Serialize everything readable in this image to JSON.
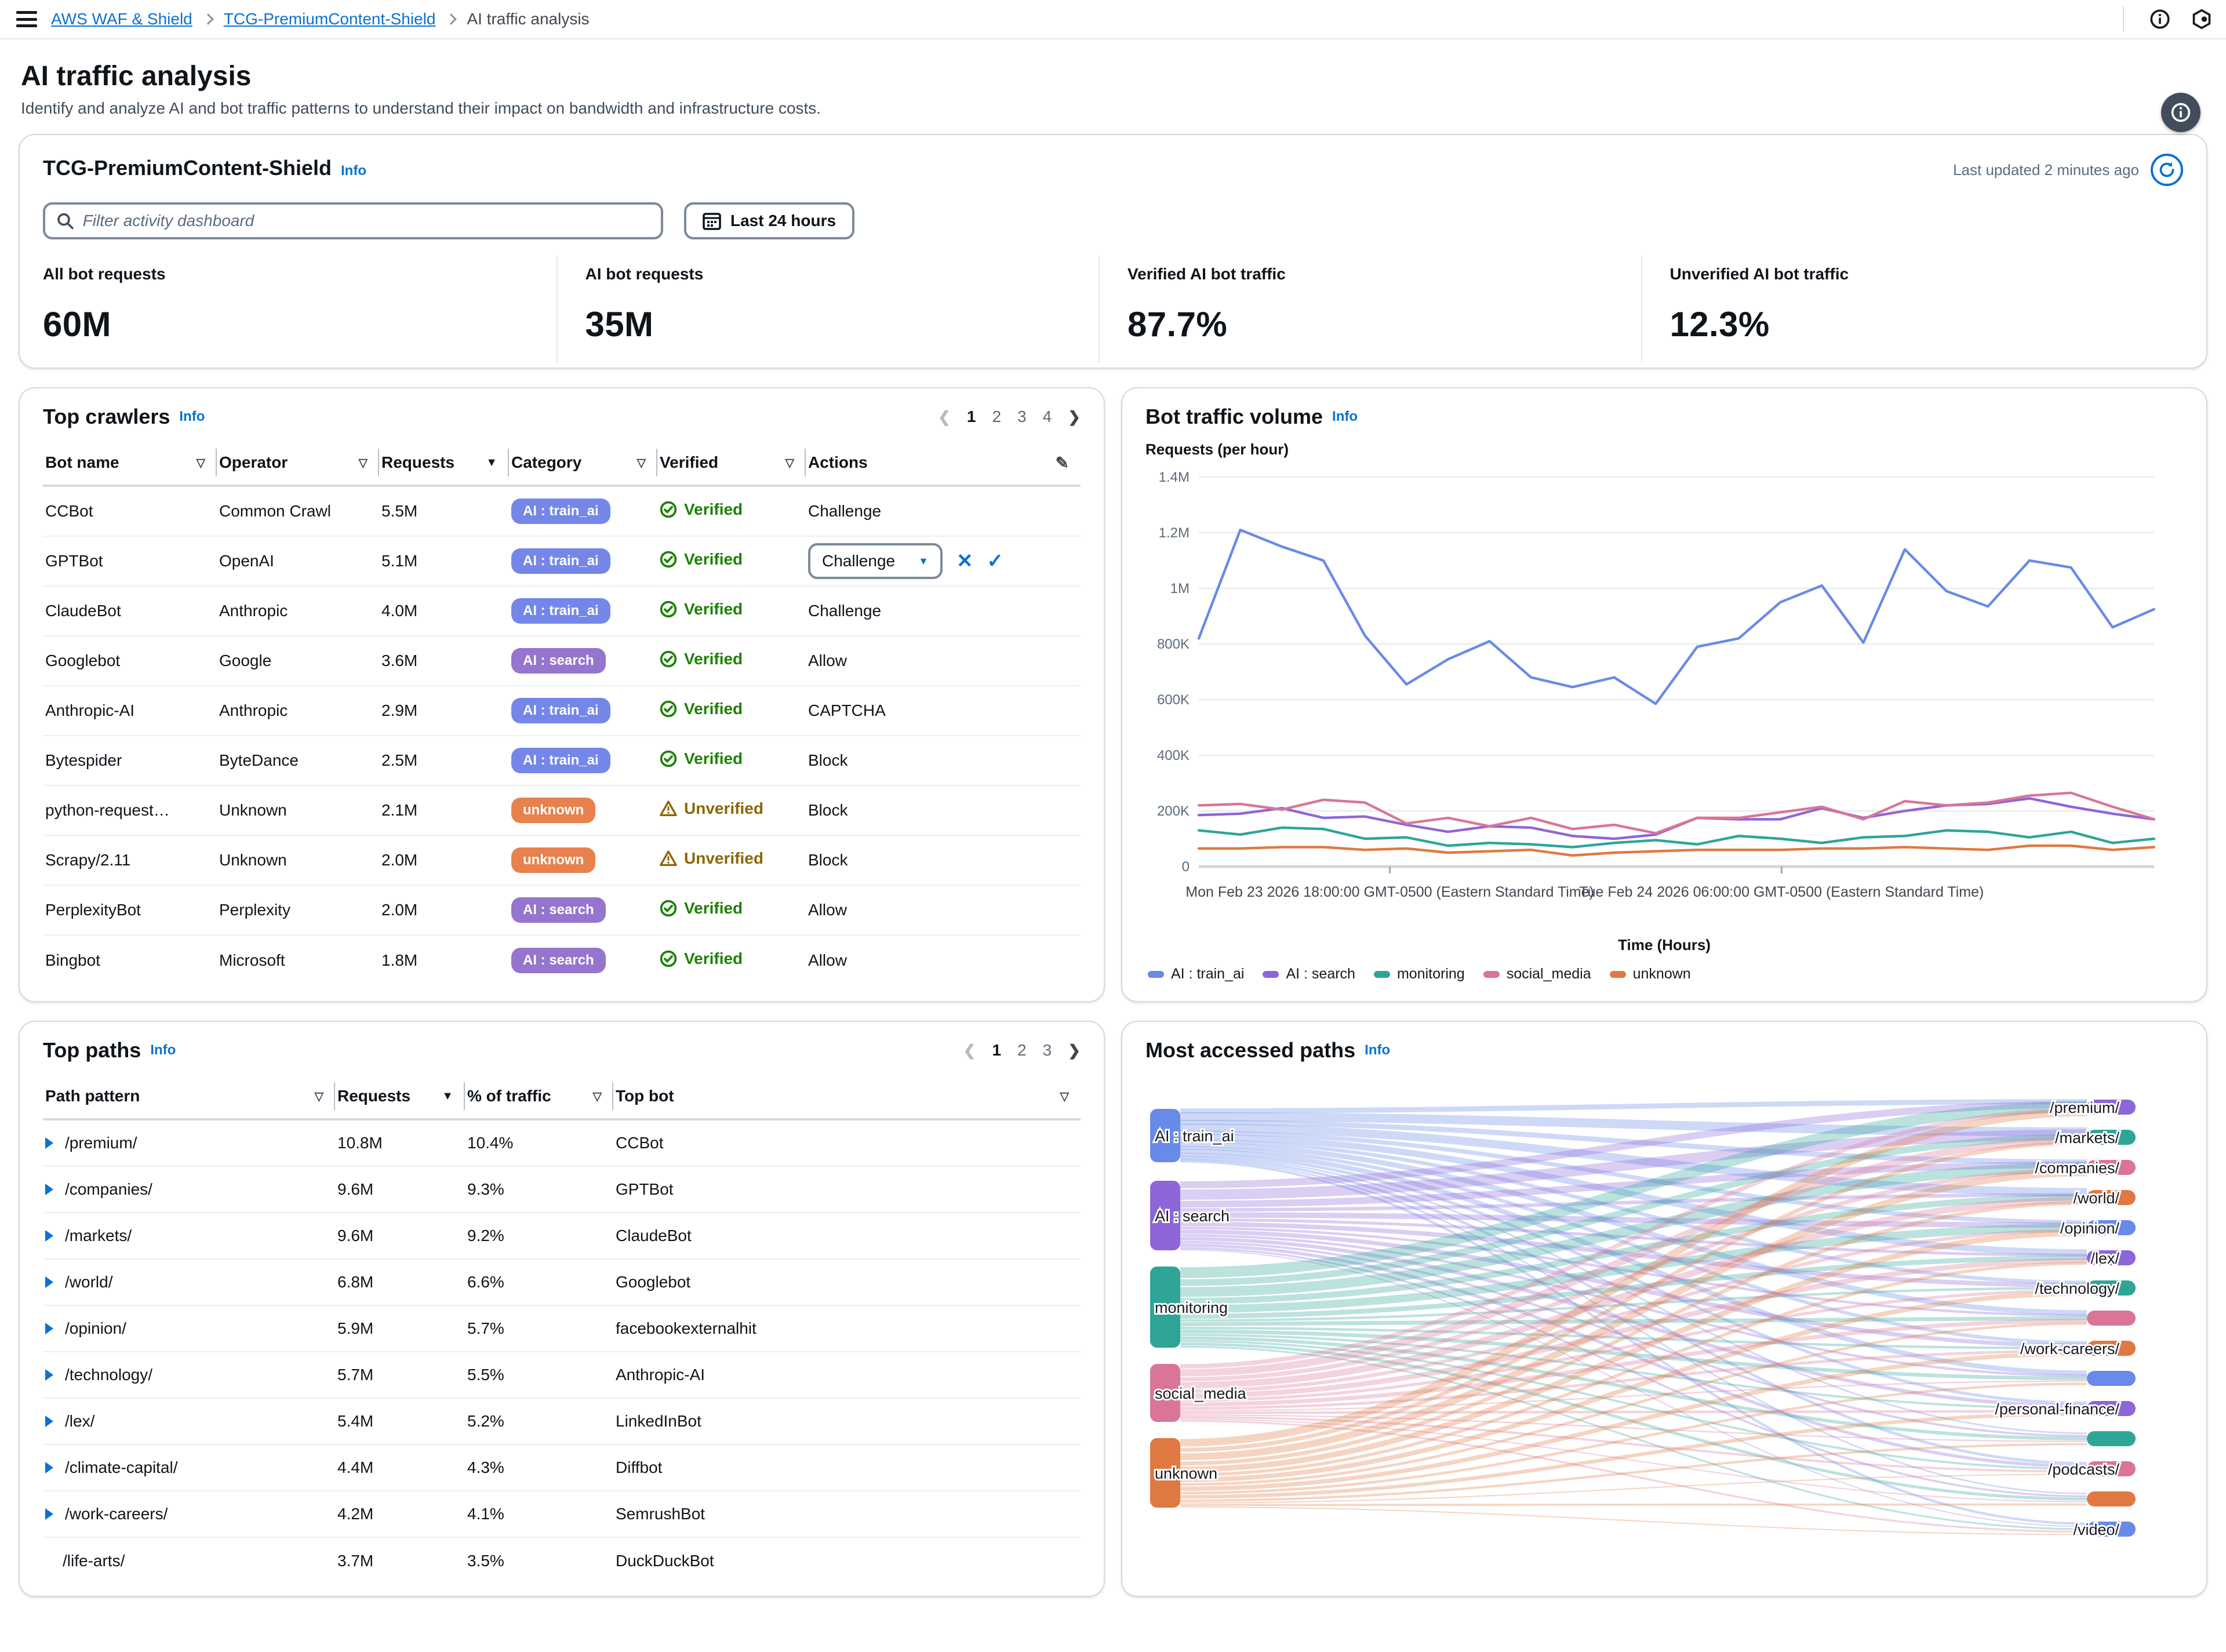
{
  "topbar": {
    "breadcrumb": [
      "AWS WAF & Shield",
      "TCG-PremiumContent-Shield",
      "AI traffic analysis"
    ]
  },
  "page": {
    "title": "AI traffic analysis",
    "subtitle": "Identify and analyze AI and bot traffic patterns to understand their impact on bandwidth and infrastructure costs."
  },
  "summary": {
    "title": "TCG-PremiumContent-Shield",
    "info_label": "Info",
    "last_updated": "Last updated 2 minutes ago",
    "filter_placeholder": "Filter activity dashboard",
    "date_range": "Last 24 hours",
    "metrics": [
      {
        "label": "All bot requests",
        "value": "60M"
      },
      {
        "label": "AI bot requests",
        "value": "35M"
      },
      {
        "label": "Verified AI bot traffic",
        "value": "87.7%"
      },
      {
        "label": "Unverified AI bot traffic",
        "value": "12.3%"
      }
    ]
  },
  "top_crawlers": {
    "title": "Top crawlers",
    "info_label": "Info",
    "pagination": {
      "pages": [
        "1",
        "2",
        "3",
        "4"
      ],
      "current": "1"
    },
    "columns": [
      "Bot name",
      "Operator",
      "Requests",
      "Category",
      "Verified",
      "Actions"
    ],
    "sorted_column": "Requests",
    "category_colors": {
      "AI : train_ai": "#7487E8",
      "AI : search": "#9575CD",
      "unknown": "#E8814D"
    },
    "rows": [
      {
        "bot": "CCBot",
        "operator": "Common Crawl",
        "requests": "5.5M",
        "category": "AI : train_ai",
        "verified": "Verified",
        "action": "Challenge",
        "editing": false
      },
      {
        "bot": "GPTBot",
        "operator": "OpenAI",
        "requests": "5.1M",
        "category": "AI : train_ai",
        "verified": "Verified",
        "action": "Challenge",
        "editing": true
      },
      {
        "bot": "ClaudeBot",
        "operator": "Anthropic",
        "requests": "4.0M",
        "category": "AI : train_ai",
        "verified": "Verified",
        "action": "Challenge",
        "editing": false
      },
      {
        "bot": "Googlebot",
        "operator": "Google",
        "requests": "3.6M",
        "category": "AI : search",
        "verified": "Verified",
        "action": "Allow",
        "editing": false
      },
      {
        "bot": "Anthropic-AI",
        "operator": "Anthropic",
        "requests": "2.9M",
        "category": "AI : train_ai",
        "verified": "Verified",
        "action": "CAPTCHA",
        "editing": false
      },
      {
        "bot": "Bytespider",
        "operator": "ByteDance",
        "requests": "2.5M",
        "category": "AI : train_ai",
        "verified": "Verified",
        "action": "Block",
        "editing": false
      },
      {
        "bot": "python-request…",
        "operator": "Unknown",
        "requests": "2.1M",
        "category": "unknown",
        "verified": "Unverified",
        "action": "Block",
        "editing": false
      },
      {
        "bot": "Scrapy/2.11",
        "operator": "Unknown",
        "requests": "2.0M",
        "category": "unknown",
        "verified": "Unverified",
        "action": "Block",
        "editing": false
      },
      {
        "bot": "PerplexityBot",
        "operator": "Perplexity",
        "requests": "2.0M",
        "category": "AI : search",
        "verified": "Verified",
        "action": "Allow",
        "editing": false
      },
      {
        "bot": "Bingbot",
        "operator": "Microsoft",
        "requests": "1.8M",
        "category": "AI : search",
        "verified": "Verified",
        "action": "Allow",
        "editing": false
      }
    ]
  },
  "bot_traffic_card": {
    "title": "Bot traffic volume",
    "info_label": "Info"
  },
  "top_paths": {
    "title": "Top paths",
    "info_label": "Info",
    "pagination": {
      "pages": [
        "1",
        "2",
        "3"
      ],
      "current": "1"
    },
    "columns": [
      "Path pattern",
      "Requests",
      "% of traffic",
      "Top bot"
    ],
    "sorted_column": "Requests",
    "rows": [
      {
        "path": "/premium/",
        "requests": "10.8M",
        "pct": "10.4%",
        "bot": "CCBot",
        "expandable": true
      },
      {
        "path": "/companies/",
        "requests": "9.6M",
        "pct": "9.3%",
        "bot": "GPTBot",
        "expandable": true
      },
      {
        "path": "/markets/",
        "requests": "9.6M",
        "pct": "9.2%",
        "bot": "ClaudeBot",
        "expandable": true
      },
      {
        "path": "/world/",
        "requests": "6.8M",
        "pct": "6.6%",
        "bot": "Googlebot",
        "expandable": true
      },
      {
        "path": "/opinion/",
        "requests": "5.9M",
        "pct": "5.7%",
        "bot": "facebookexternalhit",
        "expandable": true
      },
      {
        "path": "/technology/",
        "requests": "5.7M",
        "pct": "5.5%",
        "bot": "Anthropic-AI",
        "expandable": true
      },
      {
        "path": "/lex/",
        "requests": "5.4M",
        "pct": "5.2%",
        "bot": "LinkedInBot",
        "expandable": true
      },
      {
        "path": "/climate-capital/",
        "requests": "4.4M",
        "pct": "4.3%",
        "bot": "Diffbot",
        "expandable": true
      },
      {
        "path": "/work-careers/",
        "requests": "4.2M",
        "pct": "4.1%",
        "bot": "SemrushBot",
        "expandable": true
      },
      {
        "path": "/life-arts/",
        "requests": "3.7M",
        "pct": "3.5%",
        "bot": "DuckDuckBot",
        "expandable": false
      }
    ]
  },
  "most_accessed_card": {
    "title": "Most accessed paths",
    "info_label": "Info"
  },
  "chart_data": [
    {
      "id": "bot_traffic_volume",
      "type": "line",
      "title": "Bot traffic volume",
      "ylabel": "Requests (per hour)",
      "xlabel": "Time (Hours)",
      "ylim": [
        0,
        1400000
      ],
      "grid": true,
      "legend_position": "bottom",
      "ytick_labels": [
        "0",
        "200K",
        "400K",
        "600K",
        "800K",
        "1M",
        "1.2M",
        "1.4M"
      ],
      "xticks": [
        {
          "pos": 0.2,
          "label": "Mon Feb 23 2026 18:00:00 GMT-0500 (Eastern Standard Time)"
        },
        {
          "pos": 0.61,
          "label": "Tue Feb 24 2026 06:00:00 GMT-0500 (Eastern Standard Time)"
        }
      ],
      "series": [
        {
          "name": "AI : train_ai",
          "color": "#688AE8",
          "values": [
            820000,
            1210000,
            1150000,
            1100000,
            830000,
            655000,
            745000,
            810000,
            680000,
            645000,
            680000,
            585000,
            790000,
            820000,
            950000,
            1010000,
            805000,
            1140000,
            990000,
            935000,
            1100000,
            1075000,
            860000,
            925000
          ]
        },
        {
          "name": "AI : search",
          "color": "#8D66D9",
          "values": [
            185000,
            190000,
            210000,
            175000,
            180000,
            150000,
            125000,
            145000,
            140000,
            110000,
            100000,
            115000,
            175000,
            170000,
            170000,
            210000,
            175000,
            200000,
            220000,
            225000,
            245000,
            215000,
            190000,
            170000
          ]
        },
        {
          "name": "monitoring",
          "color": "#2EA597",
          "values": [
            130000,
            115000,
            140000,
            135000,
            100000,
            105000,
            75000,
            85000,
            80000,
            70000,
            85000,
            95000,
            80000,
            110000,
            100000,
            85000,
            105000,
            110000,
            130000,
            125000,
            105000,
            125000,
            85000,
            100000
          ]
        },
        {
          "name": "social_media",
          "color": "#DA7596",
          "values": [
            220000,
            225000,
            205000,
            240000,
            230000,
            155000,
            175000,
            145000,
            175000,
            135000,
            150000,
            120000,
            175000,
            175000,
            195000,
            215000,
            170000,
            235000,
            220000,
            230000,
            255000,
            265000,
            215000,
            170000
          ]
        },
        {
          "name": "unknown",
          "color": "#E07941",
          "values": [
            65000,
            65000,
            70000,
            70000,
            60000,
            65000,
            50000,
            55000,
            60000,
            40000,
            50000,
            55000,
            60000,
            60000,
            60000,
            65000,
            65000,
            70000,
            65000,
            60000,
            75000,
            75000,
            60000,
            70000
          ]
        }
      ]
    },
    {
      "id": "most_accessed_paths",
      "type": "sankey",
      "title": "Most accessed paths",
      "sources": [
        {
          "name": "AI : train_ai",
          "color": "#688AE8"
        },
        {
          "name": "AI : search",
          "color": "#8D66D9"
        },
        {
          "name": "monitoring",
          "color": "#2EA597"
        },
        {
          "name": "social_media",
          "color": "#DA7596"
        },
        {
          "name": "unknown",
          "color": "#E07941"
        }
      ],
      "targets": [
        {
          "name": "/premium/",
          "color": "#8D66D9"
        },
        {
          "name": "/markets/",
          "color": "#2EA597"
        },
        {
          "name": "/companies/",
          "color": "#DA7596"
        },
        {
          "name": "/world/",
          "color": "#E07941"
        },
        {
          "name": "/opinion/",
          "color": "#688AE8"
        },
        {
          "name": "/lex/",
          "color": "#8D66D9"
        },
        {
          "name": "/technology/",
          "color": "#2EA597"
        },
        {
          "name": "",
          "color": "#DA7596"
        },
        {
          "name": "/work-careers/",
          "color": "#E07941"
        },
        {
          "name": "",
          "color": "#688AE8"
        },
        {
          "name": "/personal-finance/",
          "color": "#8D66D9"
        },
        {
          "name": "",
          "color": "#2EA597"
        },
        {
          "name": "/podcasts/",
          "color": "#DA7596"
        },
        {
          "name": "",
          "color": "#E07941"
        },
        {
          "name": "/video/",
          "color": "#688AE8"
        }
      ]
    }
  ]
}
